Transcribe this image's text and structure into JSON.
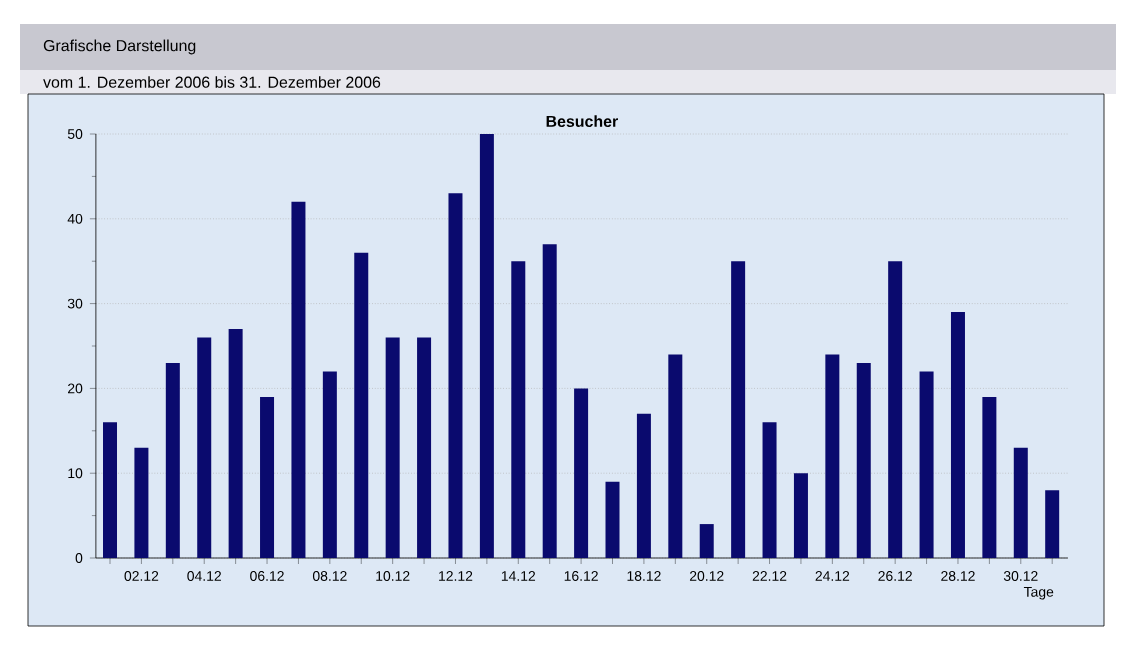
{
  "chart_data": {
    "type": "bar",
    "title": "Besucher",
    "xlabel": "Tage",
    "annotations": [
      "Grafische Darstellung",
      "vom 1. Dezember 2006  bis 31. Dezember 2006"
    ],
    "categories": [
      null,
      "02.12",
      null,
      "04.12",
      null,
      "06.12",
      null,
      "08.12",
      null,
      "10.12",
      null,
      "12.12",
      null,
      "14.12",
      null,
      "16.12",
      null,
      "18.12",
      null,
      "20.12",
      null,
      "22.12",
      null,
      "24.12",
      null,
      "26.12",
      null,
      "28.12",
      null,
      "30.12",
      null
    ],
    "values": [
      16,
      13,
      23,
      26,
      27,
      19,
      42,
      22,
      36,
      26,
      26,
      43,
      50,
      35,
      37,
      20,
      9,
      17,
      24,
      4,
      35,
      16,
      10,
      24,
      23,
      35,
      22,
      29,
      19,
      13,
      8
    ],
    "color": "#0a0a6e",
    "ylim": [
      0,
      50
    ],
    "yticks": [
      0,
      10,
      20,
      30,
      40,
      50
    ],
    "grid": "y"
  }
}
